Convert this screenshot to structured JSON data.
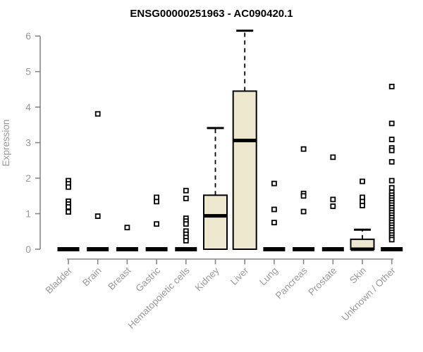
{
  "chart_data": {
    "type": "boxplot",
    "title": "ENSG00000251963 - AC090420.1",
    "xlabel": "",
    "ylabel": "Expression",
    "ylim": [
      0,
      6
    ],
    "yticks": [
      0,
      1,
      2,
      3,
      4,
      5,
      6
    ],
    "grid": false,
    "legend": null,
    "colors": {
      "box_fill": "#ece7cd",
      "box_stroke": "#000000",
      "median": "#000000",
      "outlier_fill": "#ffffff",
      "outlier_stroke": "#000000",
      "axis": "#878787",
      "tick_text": "#989898",
      "title_text": "#000000",
      "background": "#ffffff"
    },
    "categories": [
      "Bladder",
      "Brain",
      "Breast",
      "Gastric",
      "Hematopoietic cells",
      "Kidney",
      "Liver",
      "Lung",
      "Pancreas",
      "Prostate",
      "Skin",
      "Unknown / Other"
    ],
    "boxes": [
      {
        "category": "Bladder",
        "q1": 0,
        "median": 0,
        "q3": 0,
        "whisker_low": 0,
        "whisker_high": 0,
        "outliers": [
          1.93,
          1.84,
          1.75,
          1.35,
          1.27,
          1.19,
          1.05
        ]
      },
      {
        "category": "Brain",
        "q1": 0,
        "median": 0,
        "q3": 0,
        "whisker_low": 0,
        "whisker_high": 0,
        "outliers": [
          3.81,
          0.93
        ]
      },
      {
        "category": "Breast",
        "q1": 0,
        "median": 0,
        "q3": 0,
        "whisker_low": 0,
        "whisker_high": 0,
        "outliers": [
          0.61
        ]
      },
      {
        "category": "Gastric",
        "q1": 0,
        "median": 0,
        "q3": 0,
        "whisker_low": 0,
        "whisker_high": 0,
        "outliers": [
          1.46,
          1.34,
          0.71
        ]
      },
      {
        "category": "Hematopoietic cells",
        "q1": 0,
        "median": 0,
        "q3": 0,
        "whisker_low": 0,
        "whisker_high": 0,
        "outliers": [
          1.65,
          1.43,
          0.87,
          0.79,
          0.71,
          0.51,
          0.42,
          0.33,
          0.24
        ]
      },
      {
        "category": "Kidney",
        "q1": 0,
        "median": 0.94,
        "q3": 1.52,
        "whisker_low": 0,
        "whisker_high": 3.41,
        "outliers": []
      },
      {
        "category": "Liver",
        "q1": 0,
        "median": 3.06,
        "q3": 4.45,
        "whisker_low": 0,
        "whisker_high": 6.15,
        "outliers": []
      },
      {
        "category": "Lung",
        "q1": 0,
        "median": 0,
        "q3": 0,
        "whisker_low": 0,
        "whisker_high": 0,
        "outliers": [
          1.85,
          1.12,
          0.75
        ]
      },
      {
        "category": "Pancreas",
        "q1": 0,
        "median": 0,
        "q3": 0,
        "whisker_low": 0,
        "whisker_high": 0,
        "outliers": [
          2.82,
          1.57,
          1.5,
          1.06
        ]
      },
      {
        "category": "Prostate",
        "q1": 0,
        "median": 0,
        "q3": 0,
        "whisker_low": 0,
        "whisker_high": 0,
        "outliers": [
          2.59,
          1.4,
          1.21
        ]
      },
      {
        "category": "Skin",
        "q1": 0,
        "median": 0,
        "q3": 0.28,
        "whisker_low": 0,
        "whisker_high": 0.55,
        "outliers": [
          1.91,
          1.46,
          1.34,
          1.23
        ]
      },
      {
        "category": "Unknown / Other",
        "q1": 0,
        "median": 0,
        "q3": 0,
        "whisker_low": 0,
        "whisker_high": 0,
        "outliers": [
          4.58,
          3.54,
          3.09,
          2.85,
          2.78,
          2.46,
          1.93,
          1.73,
          1.6,
          1.52,
          1.45,
          1.38,
          1.31,
          1.24,
          1.17,
          1.1,
          1.03,
          0.96,
          0.89,
          0.82,
          0.75,
          0.68,
          0.61,
          0.54,
          0.47,
          0.4,
          0.33,
          0.27
        ]
      }
    ]
  }
}
